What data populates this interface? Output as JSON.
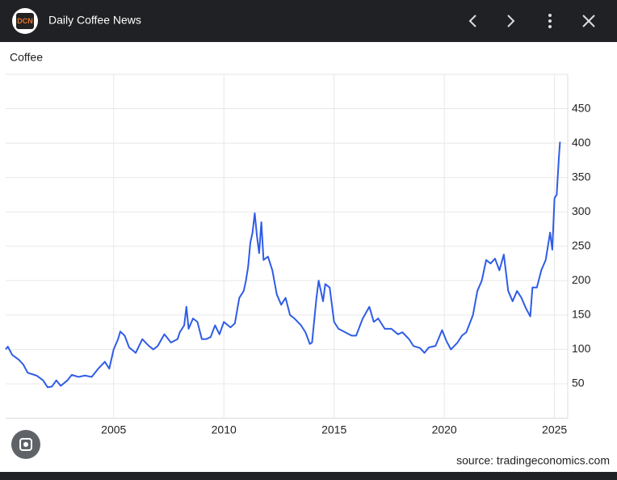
{
  "header": {
    "logo": "DCN",
    "title": "Daily Coffee News"
  },
  "chart_data": {
    "type": "line",
    "title": "Coffee",
    "source": "source: tradingeconomics.com",
    "x": [
      2000.1,
      2000.2,
      2000.4,
      2000.7,
      2000.9,
      2001.1,
      2001.5,
      2001.8,
      2002.0,
      2002.2,
      2002.4,
      2002.6,
      2002.9,
      2003.1,
      2003.4,
      2003.7,
      2004.0,
      2004.3,
      2004.6,
      2004.8,
      2005.0,
      2005.2,
      2005.3,
      2005.5,
      2005.7,
      2006.0,
      2006.3,
      2006.6,
      2006.8,
      2007.0,
      2007.3,
      2007.6,
      2007.9,
      2008.0,
      2008.2,
      2008.3,
      2008.4,
      2008.6,
      2008.8,
      2009.0,
      2009.2,
      2009.4,
      2009.6,
      2009.8,
      2010.0,
      2010.3,
      2010.5,
      2010.7,
      2010.9,
      2011.0,
      2011.1,
      2011.2,
      2011.3,
      2011.4,
      2011.5,
      2011.6,
      2011.7,
      2011.8,
      2012.0,
      2012.2,
      2012.4,
      2012.6,
      2012.8,
      2013.0,
      2013.2,
      2013.5,
      2013.7,
      2013.9,
      2014.0,
      2014.2,
      2014.3,
      2014.5,
      2014.6,
      2014.8,
      2015.0,
      2015.2,
      2015.5,
      2015.8,
      2016.0,
      2016.3,
      2016.6,
      2016.8,
      2017.0,
      2017.3,
      2017.6,
      2017.9,
      2018.1,
      2018.4,
      2018.6,
      2018.9,
      2019.1,
      2019.3,
      2019.6,
      2019.9,
      2020.1,
      2020.3,
      2020.6,
      2020.8,
      2021.0,
      2021.3,
      2021.5,
      2021.7,
      2021.9,
      2022.1,
      2022.3,
      2022.5,
      2022.7,
      2022.9,
      2023.1,
      2023.3,
      2023.5,
      2023.7,
      2023.9,
      2024.0,
      2024.2,
      2024.4,
      2024.6,
      2024.8,
      2024.9,
      2025.0,
      2025.1,
      2025.2,
      2025.25
    ],
    "series": [
      {
        "name": "Coffee",
        "color": "#2f5ce6",
        "values": [
          100,
          104,
          92,
          85,
          78,
          66,
          62,
          55,
          45,
          46,
          55,
          47,
          55,
          63,
          60,
          62,
          60,
          72,
          82,
          72,
          100,
          115,
          126,
          120,
          103,
          95,
          115,
          105,
          100,
          105,
          122,
          110,
          115,
          125,
          135,
          162,
          130,
          145,
          140,
          115,
          115,
          118,
          135,
          122,
          140,
          132,
          138,
          175,
          185,
          200,
          220,
          255,
          270,
          298,
          265,
          240,
          285,
          230,
          235,
          215,
          180,
          165,
          175,
          150,
          145,
          135,
          125,
          108,
          110,
          175,
          200,
          170,
          195,
          190,
          140,
          130,
          125,
          120,
          120,
          145,
          162,
          140,
          145,
          130,
          130,
          122,
          125,
          115,
          105,
          102,
          95,
          103,
          105,
          128,
          112,
          100,
          110,
          120,
          125,
          150,
          185,
          200,
          230,
          225,
          232,
          215,
          238,
          185,
          170,
          185,
          175,
          160,
          148,
          190,
          190,
          215,
          230,
          270,
          245,
          320,
          325,
          380,
          402
        ]
      }
    ],
    "xlim": [
      2000.1,
      2025.6
    ],
    "xticks": [
      2005,
      2010,
      2015,
      2020,
      2025
    ],
    "ylim": [
      0,
      500
    ],
    "yticks": [
      50,
      100,
      150,
      200,
      250,
      300,
      350,
      400,
      450
    ],
    "grid": true
  }
}
